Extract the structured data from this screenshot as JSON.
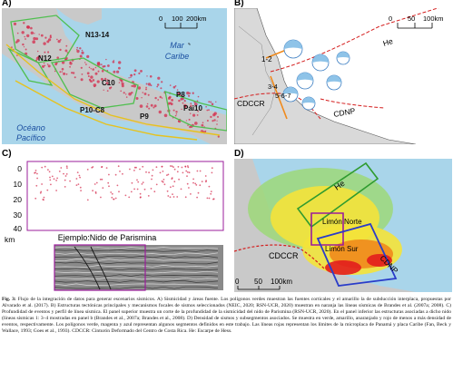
{
  "panels": {
    "a": {
      "label": "A)",
      "zones": [
        "N13-14",
        "N12",
        "C10",
        "P10-C8",
        "P9",
        "P8",
        "Pai10"
      ],
      "sea_caribbean": "Mar Caribe",
      "ocean_pacific": "Océano Pacífico",
      "scale_ticks": [
        "0",
        "100",
        "200km"
      ]
    },
    "b": {
      "label": "B)",
      "scale_ticks": [
        "0",
        "50",
        "100km"
      ],
      "labels": [
        "He",
        "1-2",
        "3-4",
        "5-6-7",
        "CDCCR",
        "CDNP"
      ]
    },
    "c": {
      "label": "C)",
      "y_ticks": [
        "0",
        "10",
        "20",
        "30",
        "40"
      ],
      "unit": "km",
      "inset_title": "Ejemplo:Nido de Parismina"
    },
    "d": {
      "label": "D)",
      "labels": [
        "He",
        "Limón Norte",
        "Limón Sur",
        "CDNP",
        "CDCCR"
      ],
      "scale_ticks": [
        "0",
        "50",
        "100km"
      ]
    }
  },
  "caption": {
    "lead": "Fig. 3:",
    "text": "Flujo de la integración de datos para generar escenarios sísmicos. A) Sismicidad y áreas fuente. Los polígonos verdes muestran las fuentes corticales y el amarillo la de subducción interplaca, propuestas por Alvarado et al. (2017). B) Estructuras tectónicas principales y mecanismos focales de sismos seleccionados (NEIC, 2020; RSN-UCR, 2020) muestran en naranja las líneas sísmicas de Brandes et al. (2007a; 2008). C) Profundidad de eventos y perfil de línea sísmica. El panel superior muestra un corte de la profundidad de la sismicidad del nido de Parismina (RSN-UCR, 2020). En el panel inferior las estructuras asociadas a dicho nido (líneas sísmicas 1: 3–4 mostradas en panel b (Brandes et al., 2007a; Brandes et al., 2008). D) Densidad de sismos y subsegmentos asociados. Se muestra en verde, amarillo, anaranjado y rojo de menos a más densidad de eventos, respectivamente. Los polígonos verde, magenta y azul representan algunos segmentos definidos en este trabajo. Las líneas rojas representan los límites de la microplaca de Panamá y placa Caribe (Fan, Beck y Wallace, 1993; Goes et al., 1993). CDCCR: Cinturón Deformado del Centro de Costa Rica. He: Escarpe de Hess."
  },
  "colors": {
    "sea": "#a9d5ea",
    "land": "#c9c9c9",
    "seismicity": "#d4284a",
    "green_poly": "#4fbf4f",
    "yellow_poly": "#e6c21f",
    "red_boundary": "#d41c1c",
    "magenta": "#9b1c9b",
    "blue": "#2a3cc9",
    "density_yellow": "#f4e33a",
    "density_orange": "#f08a1c",
    "density_red": "#e21d1d",
    "density_green": "#9ed879"
  }
}
